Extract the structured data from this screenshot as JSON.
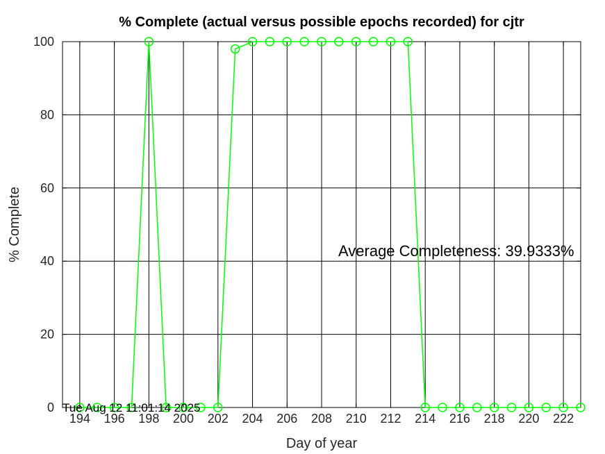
{
  "chart_data": {
    "type": "line",
    "title": "% Complete (actual versus possible epochs recorded) for cjtr",
    "xlabel": "Day of year",
    "ylabel": "% Complete",
    "xlim": [
      193,
      223
    ],
    "ylim": [
      0,
      100
    ],
    "x_ticks": [
      194,
      196,
      198,
      200,
      202,
      204,
      206,
      208,
      210,
      212,
      214,
      216,
      218,
      220,
      222
    ],
    "y_ticks": [
      0,
      20,
      40,
      60,
      80,
      100
    ],
    "grid": true,
    "series": [
      {
        "color": "#00ff00",
        "marker": "circle",
        "x": [
          194,
          195,
          196,
          197,
          198,
          199,
          200,
          201,
          202,
          203,
          204,
          205,
          206,
          207,
          208,
          209,
          210,
          211,
          212,
          213,
          214,
          215,
          216,
          217,
          218,
          219,
          220,
          221,
          222,
          223
        ],
        "values": [
          0,
          0,
          0,
          0,
          100,
          0,
          0,
          0,
          0,
          98,
          100,
          100,
          100,
          100,
          100,
          100,
          100,
          100,
          100,
          100,
          0,
          0,
          0,
          0,
          0,
          0,
          0,
          0,
          0,
          0
        ]
      }
    ],
    "annotations": {
      "average": "Average Completeness: 39.9333%",
      "timestamp": "Tue Aug 12 11:01:14 2025"
    }
  }
}
